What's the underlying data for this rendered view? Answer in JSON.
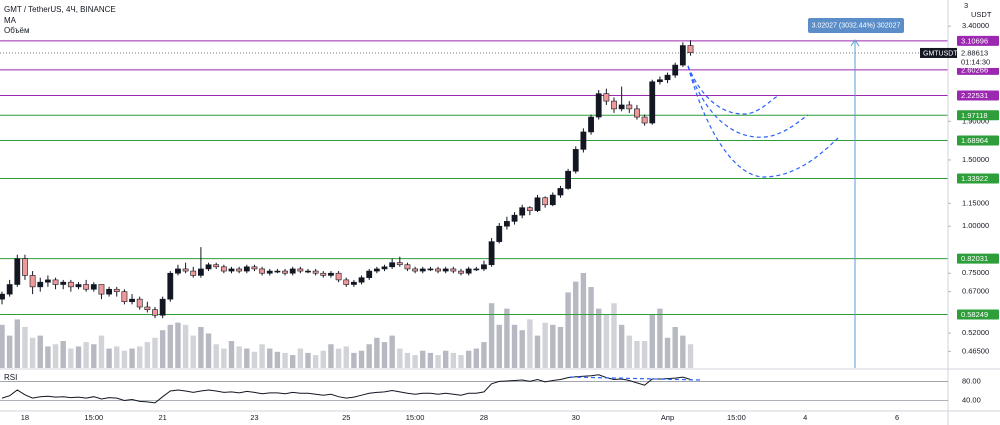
{
  "header": {
    "symbol": "GMT / TetherUS, 4Ч, BINANCE",
    "indicator_ma": "MA",
    "indicator_volume": "Объём"
  },
  "chart_data": {
    "type": "candlestick",
    "unit": "USDT",
    "axis_top_label": "3",
    "log_scale": true,
    "ylim": [
      0.42,
      3.8
    ],
    "yticks": [
      {
        "value": 3.4,
        "label": "3.40000"
      },
      {
        "value": 1.9,
        "label": "1.90000"
      },
      {
        "value": 1.5,
        "label": "1.50000"
      },
      {
        "value": 1.15,
        "label": "1.15000"
      },
      {
        "value": 1.0,
        "label": "1.00000"
      },
      {
        "value": 0.75,
        "label": "0.75000"
      },
      {
        "value": 0.67,
        "label": "0.67000"
      },
      {
        "value": 0.52,
        "label": "0.52000"
      },
      {
        "value": 0.465,
        "label": "0.46500"
      }
    ],
    "up_color": "#131722",
    "down_color": "#ef9a9a",
    "volume_color": "#b2b5be",
    "categories": [
      null,
      null,
      null,
      "18",
      null,
      null,
      null,
      null,
      null,
      null,
      null,
      null,
      "15:00",
      null,
      null,
      null,
      null,
      null,
      null,
      null,
      null,
      "21",
      null,
      null,
      null,
      null,
      null,
      null,
      null,
      null,
      null,
      null,
      null,
      "23",
      null,
      null,
      null,
      null,
      null,
      null,
      null,
      null,
      null,
      null,
      null,
      "25",
      null,
      null,
      null,
      null,
      null,
      null,
      null,
      null,
      "15:00",
      null,
      null,
      null,
      null,
      null,
      null,
      null,
      null,
      "28",
      null,
      null,
      null,
      null,
      null,
      null,
      null,
      null,
      null,
      null,
      null,
      "30",
      null,
      null,
      null,
      null,
      null,
      null,
      null,
      null,
      null,
      null,
      null,
      "Апр",
      null,
      null,
      null,
      null,
      null,
      null,
      null,
      null,
      "15:00",
      null,
      null,
      null,
      null,
      null,
      null,
      null,
      null,
      "4",
      null,
      null,
      null,
      null,
      null,
      null,
      null,
      null,
      null,
      null,
      null,
      "6",
      null,
      null,
      null,
      null,
      null,
      null
    ],
    "ohlc": [
      [
        0.64,
        0.67,
        0.62,
        0.66
      ],
      [
        0.66,
        0.72,
        0.65,
        0.7
      ],
      [
        0.7,
        0.84,
        0.69,
        0.82
      ],
      [
        0.82,
        0.84,
        0.72,
        0.74
      ],
      [
        0.74,
        0.76,
        0.66,
        0.69
      ],
      [
        0.69,
        0.73,
        0.67,
        0.71
      ],
      [
        0.71,
        0.74,
        0.69,
        0.72
      ],
      [
        0.72,
        0.73,
        0.68,
        0.7
      ],
      [
        0.7,
        0.72,
        0.68,
        0.71
      ],
      [
        0.71,
        0.72,
        0.67,
        0.69
      ],
      [
        0.69,
        0.71,
        0.68,
        0.7
      ],
      [
        0.7,
        0.72,
        0.67,
        0.68
      ],
      [
        0.68,
        0.71,
        0.67,
        0.7
      ],
      [
        0.7,
        0.7,
        0.64,
        0.66
      ],
      [
        0.66,
        0.69,
        0.65,
        0.68
      ],
      [
        0.68,
        0.69,
        0.65,
        0.67
      ],
      [
        0.67,
        0.68,
        0.62,
        0.63
      ],
      [
        0.63,
        0.66,
        0.62,
        0.64
      ],
      [
        0.64,
        0.65,
        0.6,
        0.61
      ],
      [
        0.61,
        0.63,
        0.59,
        0.6
      ],
      [
        0.6,
        0.61,
        0.57,
        0.58
      ],
      [
        0.58,
        0.65,
        0.57,
        0.64
      ],
      [
        0.64,
        0.76,
        0.63,
        0.75
      ],
      [
        0.75,
        0.79,
        0.74,
        0.77
      ],
      [
        0.77,
        0.8,
        0.75,
        0.76
      ],
      [
        0.76,
        0.78,
        0.73,
        0.74
      ],
      [
        0.74,
        0.88,
        0.73,
        0.77
      ],
      [
        0.77,
        0.8,
        0.76,
        0.79
      ],
      [
        0.79,
        0.8,
        0.77,
        0.78
      ],
      [
        0.78,
        0.79,
        0.75,
        0.76
      ],
      [
        0.76,
        0.78,
        0.75,
        0.77
      ],
      [
        0.77,
        0.78,
        0.75,
        0.76
      ],
      [
        0.76,
        0.79,
        0.75,
        0.78
      ],
      [
        0.78,
        0.79,
        0.76,
        0.77
      ],
      [
        0.77,
        0.78,
        0.74,
        0.75
      ],
      [
        0.75,
        0.77,
        0.74,
        0.76
      ],
      [
        0.76,
        0.77,
        0.75,
        0.76
      ],
      [
        0.76,
        0.77,
        0.74,
        0.75
      ],
      [
        0.75,
        0.78,
        0.74,
        0.77
      ],
      [
        0.77,
        0.78,
        0.75,
        0.76
      ],
      [
        0.76,
        0.77,
        0.75,
        0.76
      ],
      [
        0.76,
        0.77,
        0.74,
        0.75
      ],
      [
        0.75,
        0.76,
        0.73,
        0.74
      ],
      [
        0.74,
        0.76,
        0.73,
        0.75
      ],
      [
        0.75,
        0.76,
        0.71,
        0.72
      ],
      [
        0.72,
        0.73,
        0.69,
        0.7
      ],
      [
        0.7,
        0.72,
        0.69,
        0.71
      ],
      [
        0.71,
        0.74,
        0.7,
        0.73
      ],
      [
        0.73,
        0.77,
        0.72,
        0.76
      ],
      [
        0.76,
        0.78,
        0.75,
        0.77
      ],
      [
        0.77,
        0.79,
        0.76,
        0.78
      ],
      [
        0.78,
        0.82,
        0.77,
        0.8
      ],
      [
        0.8,
        0.83,
        0.78,
        0.79
      ],
      [
        0.79,
        0.8,
        0.76,
        0.77
      ],
      [
        0.77,
        0.78,
        0.75,
        0.76
      ],
      [
        0.76,
        0.78,
        0.75,
        0.77
      ],
      [
        0.77,
        0.78,
        0.76,
        0.77
      ],
      [
        0.77,
        0.78,
        0.75,
        0.76
      ],
      [
        0.76,
        0.78,
        0.75,
        0.77
      ],
      [
        0.77,
        0.78,
        0.75,
        0.76
      ],
      [
        0.76,
        0.77,
        0.74,
        0.75
      ],
      [
        0.75,
        0.78,
        0.74,
        0.77
      ],
      [
        0.77,
        0.78,
        0.76,
        0.77
      ],
      [
        0.77,
        0.81,
        0.76,
        0.79
      ],
      [
        0.79,
        0.93,
        0.78,
        0.91
      ],
      [
        0.91,
        1.02,
        0.9,
        1.0
      ],
      [
        1.0,
        1.06,
        0.98,
        1.03
      ],
      [
        1.03,
        1.09,
        1.01,
        1.07
      ],
      [
        1.07,
        1.14,
        1.05,
        1.12
      ],
      [
        1.12,
        1.13,
        1.07,
        1.1
      ],
      [
        1.1,
        1.21,
        1.09,
        1.19
      ],
      [
        1.19,
        1.2,
        1.12,
        1.14
      ],
      [
        1.14,
        1.23,
        1.13,
        1.21
      ],
      [
        1.21,
        1.28,
        1.19,
        1.26
      ],
      [
        1.26,
        1.42,
        1.25,
        1.4
      ],
      [
        1.4,
        1.63,
        1.38,
        1.6
      ],
      [
        1.6,
        1.82,
        1.57,
        1.78
      ],
      [
        1.78,
        1.98,
        1.75,
        1.95
      ],
      [
        1.95,
        2.3,
        1.92,
        2.25
      ],
      [
        2.25,
        2.32,
        2.1,
        2.15
      ],
      [
        2.15,
        2.2,
        2.0,
        2.05
      ],
      [
        2.05,
        2.35,
        2.02,
        2.1
      ],
      [
        2.1,
        2.15,
        2.0,
        2.05
      ],
      [
        2.05,
        2.1,
        1.92,
        1.95
      ],
      [
        1.95,
        1.98,
        1.85,
        1.88
      ],
      [
        1.88,
        2.45,
        1.86,
        2.42
      ],
      [
        2.42,
        2.5,
        2.38,
        2.45
      ],
      [
        2.45,
        2.56,
        2.4,
        2.52
      ],
      [
        2.52,
        2.72,
        2.48,
        2.68
      ],
      [
        2.68,
        3.08,
        2.65,
        3.02
      ],
      [
        3.02,
        3.12,
        2.84,
        2.89
      ],
      null,
      null,
      null,
      null,
      null,
      null,
      null,
      null,
      null,
      null,
      null,
      null,
      null,
      null,
      null,
      null,
      null,
      null,
      null,
      null,
      null,
      null,
      null,
      null,
      null,
      null,
      null,
      null,
      null,
      null,
      null,
      null,
      null
    ],
    "volume": [
      40,
      30,
      45,
      38,
      28,
      30,
      20,
      22,
      25,
      18,
      20,
      24,
      22,
      30,
      18,
      20,
      16,
      18,
      20,
      24,
      28,
      35,
      40,
      42,
      40,
      30,
      38,
      32,
      22,
      18,
      25,
      20,
      18,
      15,
      22,
      18,
      15,
      14,
      12,
      18,
      14,
      12,
      16,
      22,
      18,
      20,
      14,
      16,
      22,
      28,
      24,
      30,
      18,
      14,
      12,
      16,
      14,
      12,
      16,
      14,
      12,
      16,
      18,
      24,
      60,
      40,
      55,
      40,
      35,
      45,
      30,
      42,
      40,
      38,
      70,
      80,
      88,
      75,
      55,
      50,
      60,
      40,
      30,
      25,
      25,
      50,
      55,
      28,
      38,
      30,
      22,
      null,
      null,
      null,
      null,
      null,
      null,
      null,
      null,
      null,
      null,
      null,
      null,
      null,
      null,
      null,
      null,
      null,
      null,
      null,
      null,
      null,
      null,
      null,
      null,
      null,
      null,
      null,
      null,
      null,
      null,
      null,
      null,
      null
    ],
    "levels": [
      {
        "value": 3.10696,
        "color": "#9c27b0"
      },
      {
        "value": 2.60266,
        "color": "#9c27b0"
      },
      {
        "value": 2.22531,
        "color": "#9c27b0"
      },
      {
        "value": 1.97118,
        "color": "#2e9e3a"
      },
      {
        "value": 1.68964,
        "color": "#2e9e3a"
      },
      {
        "value": 1.33922,
        "color": "#2e9e3a"
      },
      {
        "value": 0.82031,
        "color": "#2e9e3a"
      },
      {
        "value": 0.58249,
        "color": "#2e9e3a"
      }
    ],
    "price_label": {
      "name": "GMTUSDT",
      "value": 2.88613,
      "countdown": "01:14:30"
    },
    "measure_label": "3.02027 (3032.44%) 302027",
    "rsi": {
      "title": "RSI",
      "color": "#131722",
      "ylim": [
        20,
        104
      ],
      "yticks": [
        {
          "value": 80,
          "label": "80.00"
        },
        {
          "value": 40,
          "label": "40.00"
        }
      ],
      "values": [
        45,
        50,
        62,
        52,
        45,
        48,
        49,
        47,
        48,
        46,
        47,
        45,
        48,
        43,
        46,
        45,
        40,
        42,
        38,
        37,
        35,
        48,
        60,
        62,
        60,
        57,
        60,
        62,
        60,
        57,
        58,
        56,
        59,
        57,
        54,
        56,
        56,
        54,
        57,
        55,
        55,
        53,
        51,
        53,
        48,
        45,
        47,
        51,
        55,
        57,
        58,
        61,
        58,
        55,
        53,
        55,
        55,
        53,
        55,
        53,
        51,
        55,
        55,
        58,
        75,
        80,
        81,
        82,
        83,
        80,
        84,
        79,
        82,
        84,
        88,
        90,
        91,
        92,
        94,
        88,
        84,
        85,
        82,
        77,
        72,
        85,
        85,
        86,
        87,
        89,
        84,
        null,
        null,
        null,
        null,
        null,
        null,
        null,
        null,
        null,
        null,
        null,
        null,
        null,
        null,
        null,
        null,
        null,
        null,
        null,
        null,
        null,
        null,
        null,
        null,
        null,
        null,
        null,
        null,
        null,
        null,
        null,
        null,
        null
      ]
    }
  }
}
